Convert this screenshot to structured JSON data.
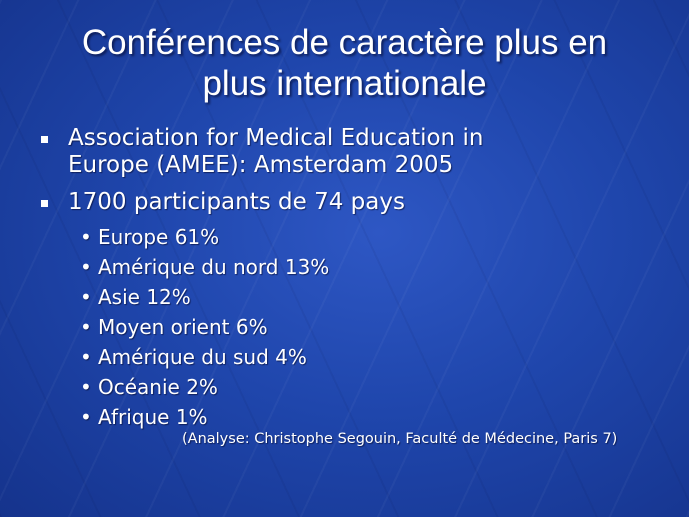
{
  "slide": {
    "title_line1": "Conférences de caractère plus en",
    "title_line2": "plus internationale",
    "main_bullets": [
      {
        "line1": "Association for Medical Education in",
        "line2": "Europe (AMEE): Amsterdam 2005"
      },
      {
        "line1": "1700 participants de 74 pays"
      }
    ],
    "sub_bullets": [
      "Europe 61%",
      "Amérique du nord 13%",
      "Asie 12%",
      "Moyen orient 6%",
      "Amérique du sud 4%",
      "Océanie 2%",
      "Afrique 1%"
    ],
    "source": "(Analyse: Christophe Segouin, Faculté de Médecine, Paris 7)",
    "bullet_glyph": "•"
  },
  "colors": {
    "background": "#1f46ac",
    "text": "#ffffff"
  }
}
